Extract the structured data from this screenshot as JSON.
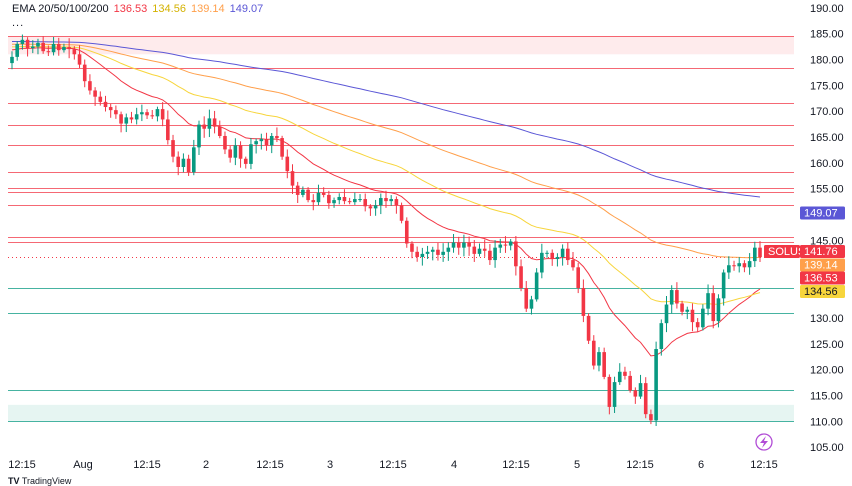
{
  "legend": {
    "label": "EMA 20/50/100/200",
    "ema20": "136.53",
    "ema50": "134.56",
    "ema100": "139.14",
    "ema200": "149.07",
    "more": "..."
  },
  "footer": {
    "brand": "TradingView"
  },
  "colors": {
    "up": "#089981",
    "down": "#f23645",
    "ema20": "#f23645",
    "ema50": "#f7d53c",
    "ema100": "#ff9f4a",
    "ema200": "#5b57d6",
    "resistance": "#f23645",
    "support": "#089981"
  },
  "chart_data": {
    "type": "candlestick",
    "symbol": "SOLUSD",
    "ylim": [
      103.5,
      191.5
    ],
    "y_ticks": [
      "105.00",
      "110.00",
      "115.00",
      "120.00",
      "125.00",
      "130.00",
      "135.00",
      "140.00",
      "145.00",
      "150.00",
      "155.00",
      "160.00",
      "165.00",
      "170.00",
      "175.00",
      "180.00",
      "185.00",
      "190.00"
    ],
    "x_tick_labels": [
      "12:15",
      "Aug",
      "12:15",
      "2",
      "12:15",
      "3",
      "12:15",
      "4",
      "12:15",
      "5",
      "12:15",
      "6",
      "12:15"
    ],
    "price_tags": [
      {
        "text": "149.07",
        "value": 149.07,
        "color": "#5b57d6",
        "text_color": "#ffffff"
      },
      {
        "text": "SOLUSD",
        "value": 142.0,
        "color": "#f23645",
        "text_color": "#ffffff"
      },
      {
        "text": "141.76",
        "value": 141.76,
        "color": "#f23645",
        "text_color": "#ffffff"
      },
      {
        "text": "139.14",
        "value": 139.14,
        "color": "#ff9f4a",
        "text_color": "#ffffff"
      },
      {
        "text": "136.53",
        "value": 136.53,
        "color": "#f23645",
        "text_color": "#ffffff"
      },
      {
        "text": "134.56",
        "value": 134.56,
        "color": "#f7d53c",
        "text_color": "#131722"
      }
    ],
    "last_price": 141.76,
    "horizontal_lines": [
      {
        "value": 184.5,
        "color": "#f23645"
      },
      {
        "value": 178.4,
        "color": "#f23645"
      },
      {
        "value": 171.6,
        "color": "#f23645"
      },
      {
        "value": 167.3,
        "color": "#f23645"
      },
      {
        "value": 163.4,
        "color": "#f23645"
      },
      {
        "value": 158.3,
        "color": "#f23645"
      },
      {
        "value": 155.2,
        "color": "#f23645"
      },
      {
        "value": 154.3,
        "color": "#f23645"
      },
      {
        "value": 151.9,
        "color": "#f23645"
      },
      {
        "value": 145.6,
        "color": "#f23645"
      },
      {
        "value": 144.7,
        "color": "#f23645"
      },
      {
        "value": 135.8,
        "color": "#089981"
      },
      {
        "value": 131.0,
        "color": "#089981"
      },
      {
        "value": 116.0,
        "color": "#089981"
      },
      {
        "value": 110.1,
        "color": "#089981"
      }
    ],
    "zones": [
      {
        "from": 181.0,
        "to": 184.5,
        "color": "#f23645"
      },
      {
        "from": 110.1,
        "to": 113.2,
        "color": "#089981"
      }
    ],
    "closes": [
      180.5,
      183.0,
      183.8,
      182.2,
      182.5,
      183.2,
      181.6,
      181.4,
      183.0,
      181.8,
      182.4,
      182.0,
      181.0,
      179.0,
      175.8,
      174.0,
      172.8,
      171.8,
      170.8,
      170.2,
      169.4,
      167.6,
      168.8,
      168.4,
      169.4,
      169.8,
      169.2,
      169.0,
      170.4,
      168.4,
      164.4,
      161.2,
      159.2,
      160.8,
      158.2,
      163.0,
      167.4,
      166.6,
      168.6,
      167.0,
      165.2,
      162.6,
      161.0,
      163.4,
      160.8,
      159.8,
      163.6,
      164.2,
      164.6,
      163.4,
      165.2,
      164.8,
      161.2,
      158.4,
      155.6,
      153.8,
      154.8,
      152.8,
      152.4,
      154.2,
      153.8,
      152.2,
      152.8,
      153.4,
      152.6,
      152.4,
      153.0,
      153.0,
      151.6,
      151.2,
      151.8,
      153.2,
      152.6,
      153.0,
      151.8,
      148.8,
      144.4,
      142.8,
      141.8,
      142.4,
      142.8,
      143.2,
      142.2,
      142.8,
      143.6,
      144.6,
      143.6,
      144.6,
      143.8,
      142.4,
      143.4,
      143.0,
      141.2,
      143.6,
      144.2,
      144.0,
      144.8,
      140.0,
      135.8,
      131.8,
      133.6,
      138.8,
      142.6,
      142.6,
      141.4,
      141.8,
      143.4,
      141.2,
      139.8,
      135.8,
      130.4,
      125.6,
      120.8,
      123.4,
      118.6,
      112.8,
      117.6,
      119.6,
      118.8,
      116.0,
      114.8,
      117.4,
      111.4,
      110.2,
      124.0,
      129.0,
      132.6,
      135.4,
      132.8,
      131.2,
      131.6,
      129.2,
      128.2,
      131.8,
      134.8,
      129.4,
      133.8,
      138.8,
      140.2,
      140.0,
      140.6,
      139.8,
      141.0,
      143.6,
      141.76
    ]
  }
}
